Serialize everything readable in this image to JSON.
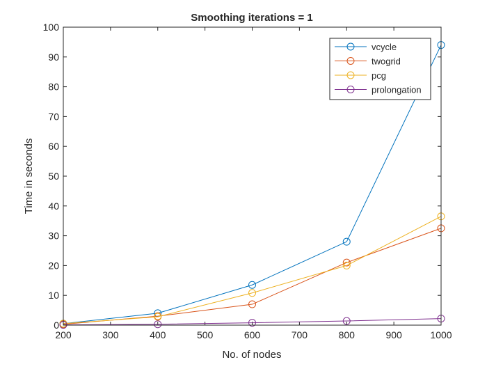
{
  "chart_data": {
    "type": "line",
    "title": "Smoothing iterations = 1",
    "xlabel": "No. of nodes",
    "ylabel": "Time in seconds",
    "xlim": [
      200,
      1000
    ],
    "ylim": [
      0,
      100
    ],
    "x_ticks": [
      200,
      300,
      400,
      500,
      600,
      700,
      800,
      900,
      1000
    ],
    "y_ticks": [
      0,
      10,
      20,
      30,
      40,
      50,
      60,
      70,
      80,
      90,
      100
    ],
    "grid": false,
    "legend_position": "top-right",
    "marker": "circle",
    "x": [
      200,
      400,
      600,
      800,
      1000
    ],
    "series": [
      {
        "name": "vcycle",
        "color": "#0072BD",
        "values": [
          0.5,
          4.0,
          13.5,
          28.0,
          94.0
        ]
      },
      {
        "name": "twogrid",
        "color": "#D95319",
        "values": [
          0.3,
          3.0,
          7.0,
          21.0,
          32.5
        ]
      },
      {
        "name": "pcg",
        "color": "#EDB120",
        "values": [
          0.5,
          2.8,
          10.8,
          20.0,
          36.5
        ]
      },
      {
        "name": "prolongation",
        "color": "#7E2F8E",
        "values": [
          0.1,
          0.3,
          0.8,
          1.4,
          2.2
        ]
      }
    ]
  }
}
